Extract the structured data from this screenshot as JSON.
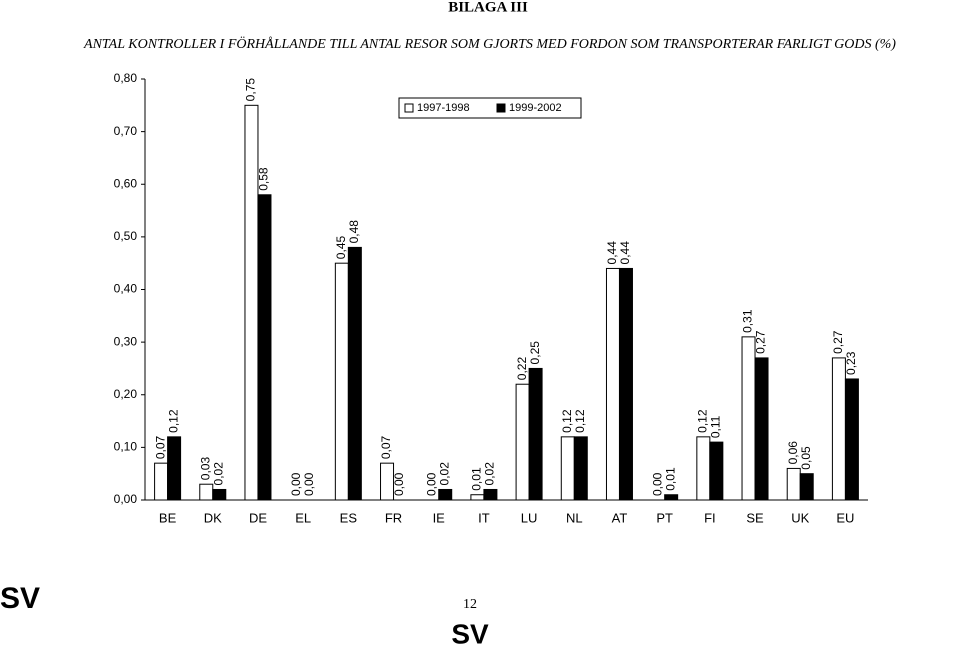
{
  "header": {
    "annex": "BILAGA III"
  },
  "footer": {
    "language": "SV",
    "page_number": "12",
    "language_bottom": "SV"
  },
  "chart_data": {
    "type": "bar",
    "title": "ANTAL KONTROLLER I FÖRHÅLLANDE TILL ANTAL RESOR SOM GJORTS MED FORDON SOM TRANSPORTERAR FARLIGT GODS (%)",
    "categories": [
      "BE",
      "DK",
      "DE",
      "EL",
      "ES",
      "FR",
      "IE",
      "IT",
      "LU",
      "NL",
      "AT",
      "PT",
      "FI",
      "SE",
      "UK",
      "EU"
    ],
    "series": [
      {
        "name": "1997-1998",
        "color": "#ffffff",
        "values": [
          0.07,
          0.03,
          0.75,
          0.0,
          0.45,
          0.07,
          0.0,
          0.01,
          0.22,
          0.12,
          0.44,
          0.0,
          0.12,
          0.31,
          0.06,
          0.27
        ],
        "value_labels": [
          "0,07",
          "0,03",
          "0,75",
          "0,00",
          "0,45",
          "0,07",
          "0,00",
          "0,01",
          "0,22",
          "0,12",
          "0,44",
          "0,00",
          "0,12",
          "0,31",
          "0,06",
          "0,27"
        ]
      },
      {
        "name": "1999-2002",
        "color": "#000000",
        "values": [
          0.12,
          0.02,
          0.58,
          0.0,
          0.48,
          0.0,
          0.02,
          0.02,
          0.25,
          0.12,
          0.44,
          0.01,
          0.11,
          0.27,
          0.05,
          0.23
        ],
        "value_labels": [
          "0,12",
          "0,02",
          "0,58",
          "0,00",
          "0,48",
          "0,00",
          "0,02",
          "0,02",
          "0,25",
          "0,12",
          "0,44",
          "0,01",
          "0,11",
          "0,27",
          "0,05",
          "0,23"
        ]
      }
    ],
    "ylim": [
      0,
      0.8
    ],
    "yticks": [
      {
        "value": 0,
        "label": "0,00"
      },
      {
        "value": 0.1,
        "label": "0,10"
      },
      {
        "value": 0.2,
        "label": "0,20"
      },
      {
        "value": 0.3,
        "label": "0,30"
      },
      {
        "value": 0.4,
        "label": "0,40"
      },
      {
        "value": 0.5,
        "label": "0,50"
      },
      {
        "value": 0.6,
        "label": "0,60"
      },
      {
        "value": 0.7,
        "label": "0,70"
      },
      {
        "value": 0.8,
        "label": "0,80"
      }
    ],
    "grid": false,
    "legend": "top"
  }
}
